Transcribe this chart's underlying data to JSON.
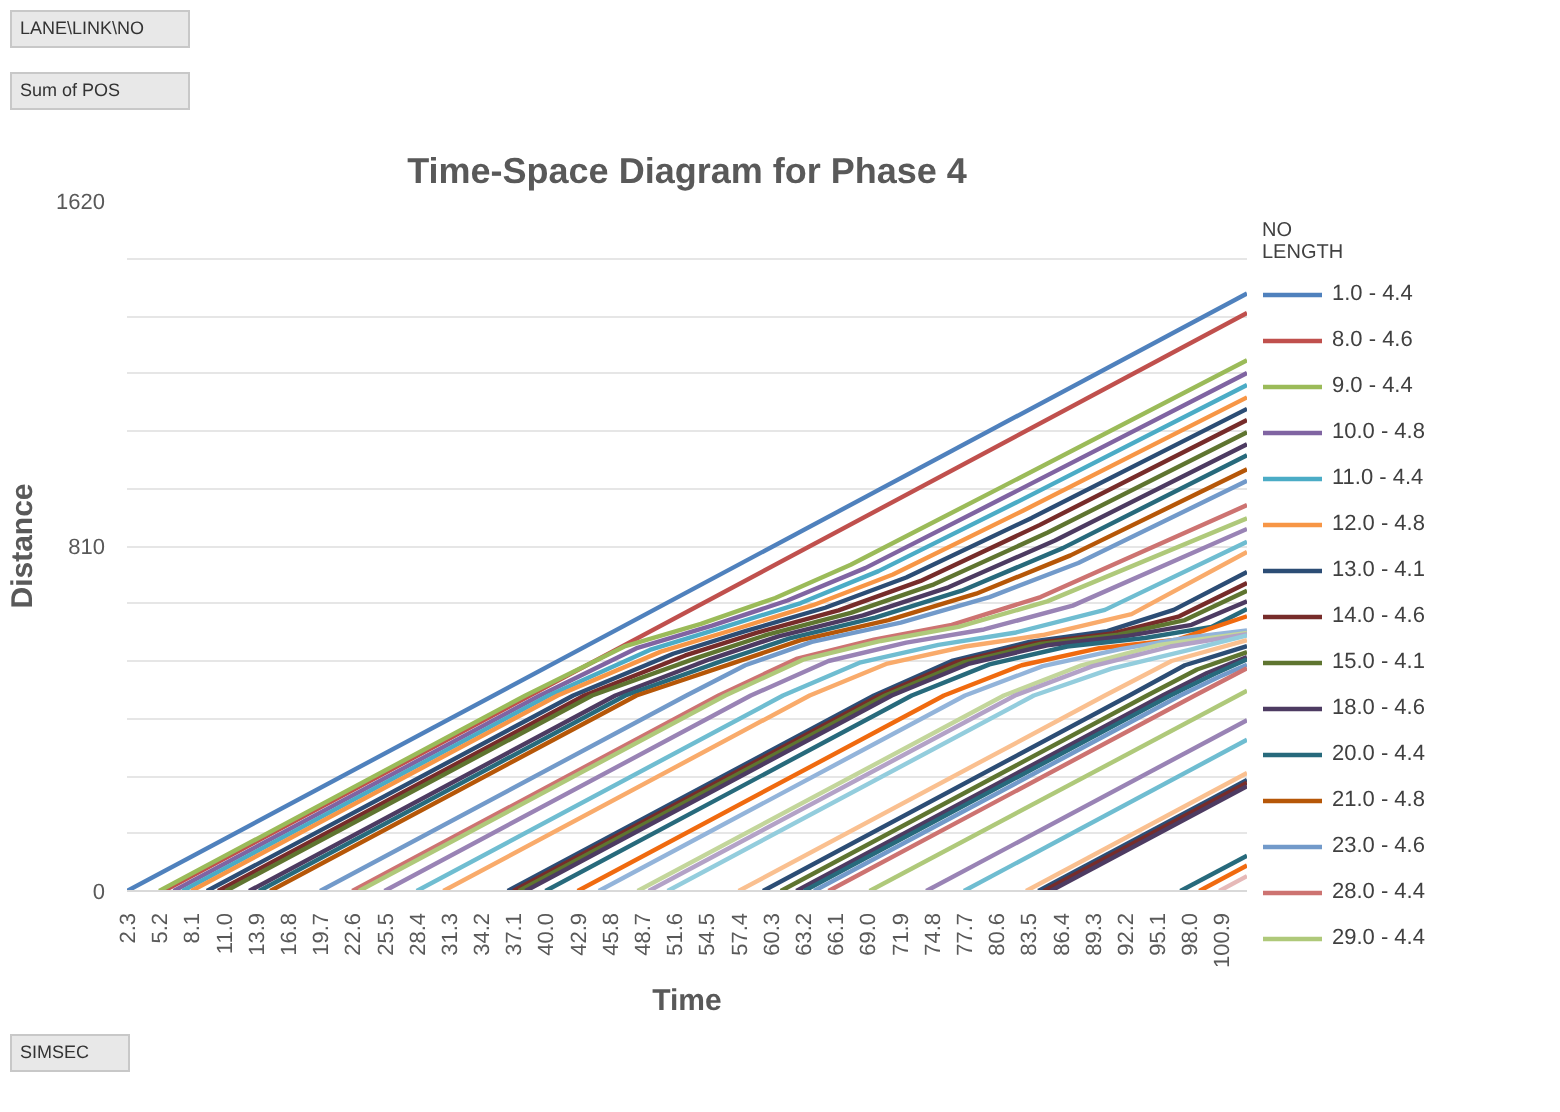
{
  "chart_data": {
    "type": "line",
    "title": "Time-Space Diagram for Phase 4",
    "xlabel": "Time",
    "ylabel": "Distance",
    "legend_title": "NO",
    "annotations": [
      "LANE\\LINK\\NO",
      "Sum of POS",
      "LENGTH",
      "SIMSEC"
    ],
    "xlim": [
      2.3,
      103.2
    ],
    "ylim": [
      0,
      1620
    ],
    "xticks": [
      2.3,
      5.2,
      8.1,
      {
        "value": 11.0,
        "label": "11.0"
      },
      13.9,
      16.8,
      19.7,
      22.6,
      25.5,
      28.4,
      31.3,
      34.2,
      37.1,
      {
        "value": 40.0,
        "label": "40.0"
      },
      42.9,
      45.8,
      48.7,
      51.6,
      54.5,
      57.4,
      60.3,
      63.2,
      66.1,
      {
        "value": 69.0,
        "label": "69.0"
      },
      71.9,
      74.8,
      77.7,
      80.6,
      83.5,
      86.4,
      89.3,
      92.2,
      95.1,
      {
        "value": 98.0,
        "label": "98.0"
      },
      100.9
    ],
    "yticks": [
      0,
      {
        "value": 135,
        "label": null
      },
      {
        "value": 270,
        "label": null
      },
      {
        "value": 405,
        "label": null
      },
      {
        "value": 540,
        "label": null
      },
      {
        "value": 675,
        "label": null
      },
      810,
      {
        "value": 945,
        "label": null
      },
      {
        "value": 1080,
        "label": null
      },
      {
        "value": 1215,
        "label": null
      },
      {
        "value": 1350,
        "label": null
      },
      {
        "value": 1485,
        "label": null
      },
      1620
    ],
    "grid": "y",
    "legend": "right",
    "marker": "none",
    "line_style": "solid",
    "series": [
      {
        "name": "1.0 - 4.4",
        "color": "#4f81bd",
        "x": [
          2.3,
          103.2
        ],
        "values": [
          0,
          1403
        ]
      },
      {
        "name": "8.0 - 4.6",
        "color": "#c0504d",
        "x": [
          5.6,
          103.2
        ],
        "values": [
          0,
          1357
        ]
      },
      {
        "name": "9.0 - 4.4",
        "color": "#9bbb59",
        "x": [
          5.2,
          38.2,
          47.2,
          54,
          60.7,
          67.5,
          81,
          103.2
        ],
        "values": [
          0,
          459,
          575,
          627,
          688,
          766,
          947,
          1246
        ]
      },
      {
        "name": "10.0 - 4.8",
        "color": "#8064a2",
        "x": [
          6.5,
          39.5,
          48.3,
          55,
          61.8,
          68.8,
          81.7,
          103.2
        ],
        "values": [
          0,
          459,
          571,
          623,
          682,
          758,
          929,
          1216
        ]
      },
      {
        "name": "11.0 - 4.4",
        "color": "#4bacc6",
        "x": [
          7.3,
          40.3,
          49.4,
          56,
          63,
          70,
          82.4,
          103.2
        ],
        "values": [
          0,
          459,
          566,
          619,
          676,
          751,
          912,
          1188
        ]
      },
      {
        "name": "12.0 - 4.8",
        "color": "#f79646",
        "x": [
          8.1,
          41.1,
          50.4,
          57,
          64.1,
          71.3,
          83.1,
          103.2
        ],
        "values": [
          0,
          459,
          562,
          614,
          671,
          743,
          894,
          1159
        ]
      },
      {
        "name": "13.0 - 4.1",
        "color": "#2c4d75",
        "x": [
          9.5,
          42.5,
          51.5,
          58,
          65.2,
          72.5,
          83.8,
          103.2
        ],
        "values": [
          0,
          459,
          557,
          610,
          665,
          736,
          876,
          1132
        ]
      },
      {
        "name": "14.0 - 4.6",
        "color": "#772c2a",
        "x": [
          10.5,
          43.5,
          52.6,
          59,
          66.4,
          73.8,
          84.5,
          103.2
        ],
        "values": [
          0,
          459,
          553,
          606,
          659,
          728,
          859,
          1106
        ]
      },
      {
        "name": "15.0 - 4.1",
        "color": "#5f7530",
        "x": [
          11.2,
          44.2,
          53.7,
          60,
          67.5,
          75,
          85.2,
          103.2
        ],
        "values": [
          0,
          459,
          548,
          602,
          653,
          720,
          841,
          1077
        ]
      },
      {
        "name": "18.0 - 4.6",
        "color": "#4d3b62",
        "x": [
          13.3,
          46.3,
          54.8,
          61,
          68.6,
          76.3,
          85.9,
          103.2
        ],
        "values": [
          0,
          459,
          544,
          598,
          647,
          713,
          823,
          1049
        ]
      },
      {
        "name": "20.0 - 4.4",
        "color": "#276a7c",
        "x": [
          14.2,
          47.2,
          55.8,
          62,
          69.7,
          77.5,
          86.6,
          103.2
        ],
        "values": [
          0,
          459,
          539,
          593,
          642,
          705,
          805,
          1023
        ]
      },
      {
        "name": "21.0 - 4.8",
        "color": "#b65708",
        "x": [
          15.2,
          48.2,
          56.9,
          63,
          70.9,
          78.8,
          87.3,
          103.2
        ],
        "values": [
          0,
          459,
          535,
          589,
          636,
          698,
          788,
          990
        ]
      },
      {
        "name": "23.0 - 4.6",
        "color": "#729aca",
        "x": [
          19.7,
          52.7,
          58,
          64,
          72,
          80,
          88,
          103.2
        ],
        "values": [
          0,
          459,
          530,
          585,
          630,
          690,
          770,
          963
        ]
      },
      {
        "name": "28.0 - 4.4",
        "color": "#cd7371",
        "x": [
          22.6,
          55.6,
          62.6,
          69.6,
          76.6,
          84.6,
          103.2
        ],
        "values": [
          0,
          459,
          545,
          590,
          625,
          690,
          906
        ]
      },
      {
        "name": "29.0 - 4.4",
        "color": "#afc97a",
        "x": [
          23.2,
          56.2,
          63.2,
          70.2,
          77.2,
          85.2,
          103.2
        ],
        "values": [
          0,
          459,
          543,
          587,
          620,
          680,
          875
        ]
      },
      {
        "color": "#9983b5",
        "x": [
          25.5,
          58.5,
          65.5,
          72.5,
          79.5,
          87.5,
          103.2
        ],
        "values": [
          0,
          459,
          540,
          583,
          614,
          670,
          850
        ]
      },
      {
        "color": "#6fbdd1",
        "x": [
          28.4,
          61.4,
          68.4,
          75.4,
          82.4,
          90.4,
          103.2
        ],
        "values": [
          0,
          459,
          537,
          578,
          607,
          660,
          820
        ]
      },
      {
        "color": "#f9ab6b",
        "x": [
          30.8,
          63.8,
          70.8,
          77.8,
          84.8,
          92.8,
          103.2
        ],
        "values": [
          0,
          459,
          534,
          574,
          601,
          650,
          796
        ]
      },
      {
        "color": "#2c4d75",
        "x": [
          36.6,
          69.6,
          76.6,
          83.6,
          90.6,
          96.6,
          103.2
        ],
        "values": [
          0,
          459,
          540,
          585,
          610,
          660,
          749
        ]
      },
      {
        "color": "#772c2a",
        "x": [
          37.1,
          70.1,
          77.1,
          84.1,
          91.1,
          97.1,
          103.2
        ],
        "values": [
          0,
          459,
          538,
          582,
          605,
          645,
          723
        ]
      },
      {
        "color": "#5f7530",
        "x": [
          37.6,
          70.6,
          77.6,
          84.6,
          91.6,
          97.6,
          103.2
        ],
        "values": [
          0,
          459,
          536,
          580,
          602,
          636,
          705
        ]
      },
      {
        "color": "#4d3b62",
        "x": [
          38.2,
          71.2,
          78.2,
          85.2,
          92.2,
          98.2,
          103.2
        ],
        "values": [
          0,
          459,
          534,
          577,
          598,
          625,
          680
        ]
      },
      {
        "color": "#276a7c",
        "x": [
          40,
          73,
          80,
          87,
          94,
          100,
          103.2
        ],
        "values": [
          0,
          459,
          532,
          574,
          594,
          620,
          662
        ]
      },
      {
        "color": "#f06a0f",
        "x": [
          42.9,
          75.9,
          82.9,
          89.9,
          96.9,
          103.2
        ],
        "values": [
          0,
          459,
          530,
          570,
          590,
          645
        ]
      },
      {
        "color": "#93b4da",
        "x": [
          44.8,
          77.8,
          84.8,
          91.8,
          97.8,
          103.2
        ],
        "values": [
          0,
          459,
          528,
          568,
          595,
          612
        ]
      },
      {
        "color": "#c3d69b",
        "x": [
          48.3,
          81.3,
          88.3,
          95.3,
          103.2
        ],
        "values": [
          0,
          459,
          530,
          578,
          606
        ]
      },
      {
        "color": "#b3a2c7",
        "x": [
          49.3,
          82.3,
          89.3,
          96.3,
          103.2
        ],
        "values": [
          0,
          459,
          528,
          574,
          603
        ]
      },
      {
        "color": "#93cddd",
        "x": [
          51,
          84,
          91,
          98,
          103.2
        ],
        "values": [
          0,
          459,
          522,
          566,
          600
        ]
      },
      {
        "color": "#fac090",
        "x": [
          57.4,
          90.4,
          96.4,
          103.2
        ],
        "values": [
          0,
          459,
          540,
          589
        ]
      },
      {
        "color": "#2c4d75",
        "x": [
          59.6,
          92.6,
          97.6,
          103.2
        ],
        "values": [
          0,
          459,
          530,
          575
        ]
      },
      {
        "color": "#5f7530",
        "x": [
          61.2,
          94.2,
          98.7,
          103.2
        ],
        "values": [
          0,
          459,
          520,
          561
        ]
      },
      {
        "color": "#4d3b62",
        "x": [
          62.6,
          95.6,
          99.6,
          103.2
        ],
        "values": [
          0,
          459,
          512,
          549
        ]
      },
      {
        "color": "#276a7c",
        "x": [
          63.3,
          96.3,
          100.3,
          103.2
        ],
        "values": [
          0,
          459,
          510,
          544
        ]
      },
      {
        "color": "#729aca",
        "x": [
          64.2,
          97.2,
          100.7,
          103.2
        ],
        "values": [
          0,
          459,
          503,
          531
        ]
      },
      {
        "color": "#cd7371",
        "x": [
          65.5,
          98.5,
          103.2
        ],
        "values": [
          0,
          459,
          523
        ]
      },
      {
        "color": "#afc97a",
        "x": [
          69.2,
          103.2
        ],
        "values": [
          0,
          470
        ]
      },
      {
        "color": "#9983b5",
        "x": [
          74.3,
          103.2
        ],
        "values": [
          0,
          401
        ]
      },
      {
        "color": "#6fbdd1",
        "x": [
          77.7,
          103.2
        ],
        "values": [
          0,
          355
        ]
      },
      {
        "color": "#fac090",
        "x": [
          83.3,
          103.2
        ],
        "values": [
          0,
          277
        ]
      },
      {
        "color": "#2c4d75",
        "x": [
          84.4,
          103.2
        ],
        "values": [
          0,
          261
        ]
      },
      {
        "color": "#772c2a",
        "x": [
          84.9,
          103.2
        ],
        "values": [
          0,
          254
        ]
      },
      {
        "color": "#4d3b62",
        "x": [
          85.5,
          103.2
        ],
        "values": [
          0,
          246
        ]
      },
      {
        "color": "#276a7c",
        "x": [
          97.2,
          103.2
        ],
        "values": [
          0,
          83
        ]
      },
      {
        "color": "#f06a0f",
        "x": [
          98.9,
          103.2
        ],
        "values": [
          0,
          60
        ]
      },
      {
        "color": "#e6b9b8",
        "x": [
          100.7,
          103.2
        ],
        "values": [
          0,
          35
        ]
      }
    ]
  }
}
